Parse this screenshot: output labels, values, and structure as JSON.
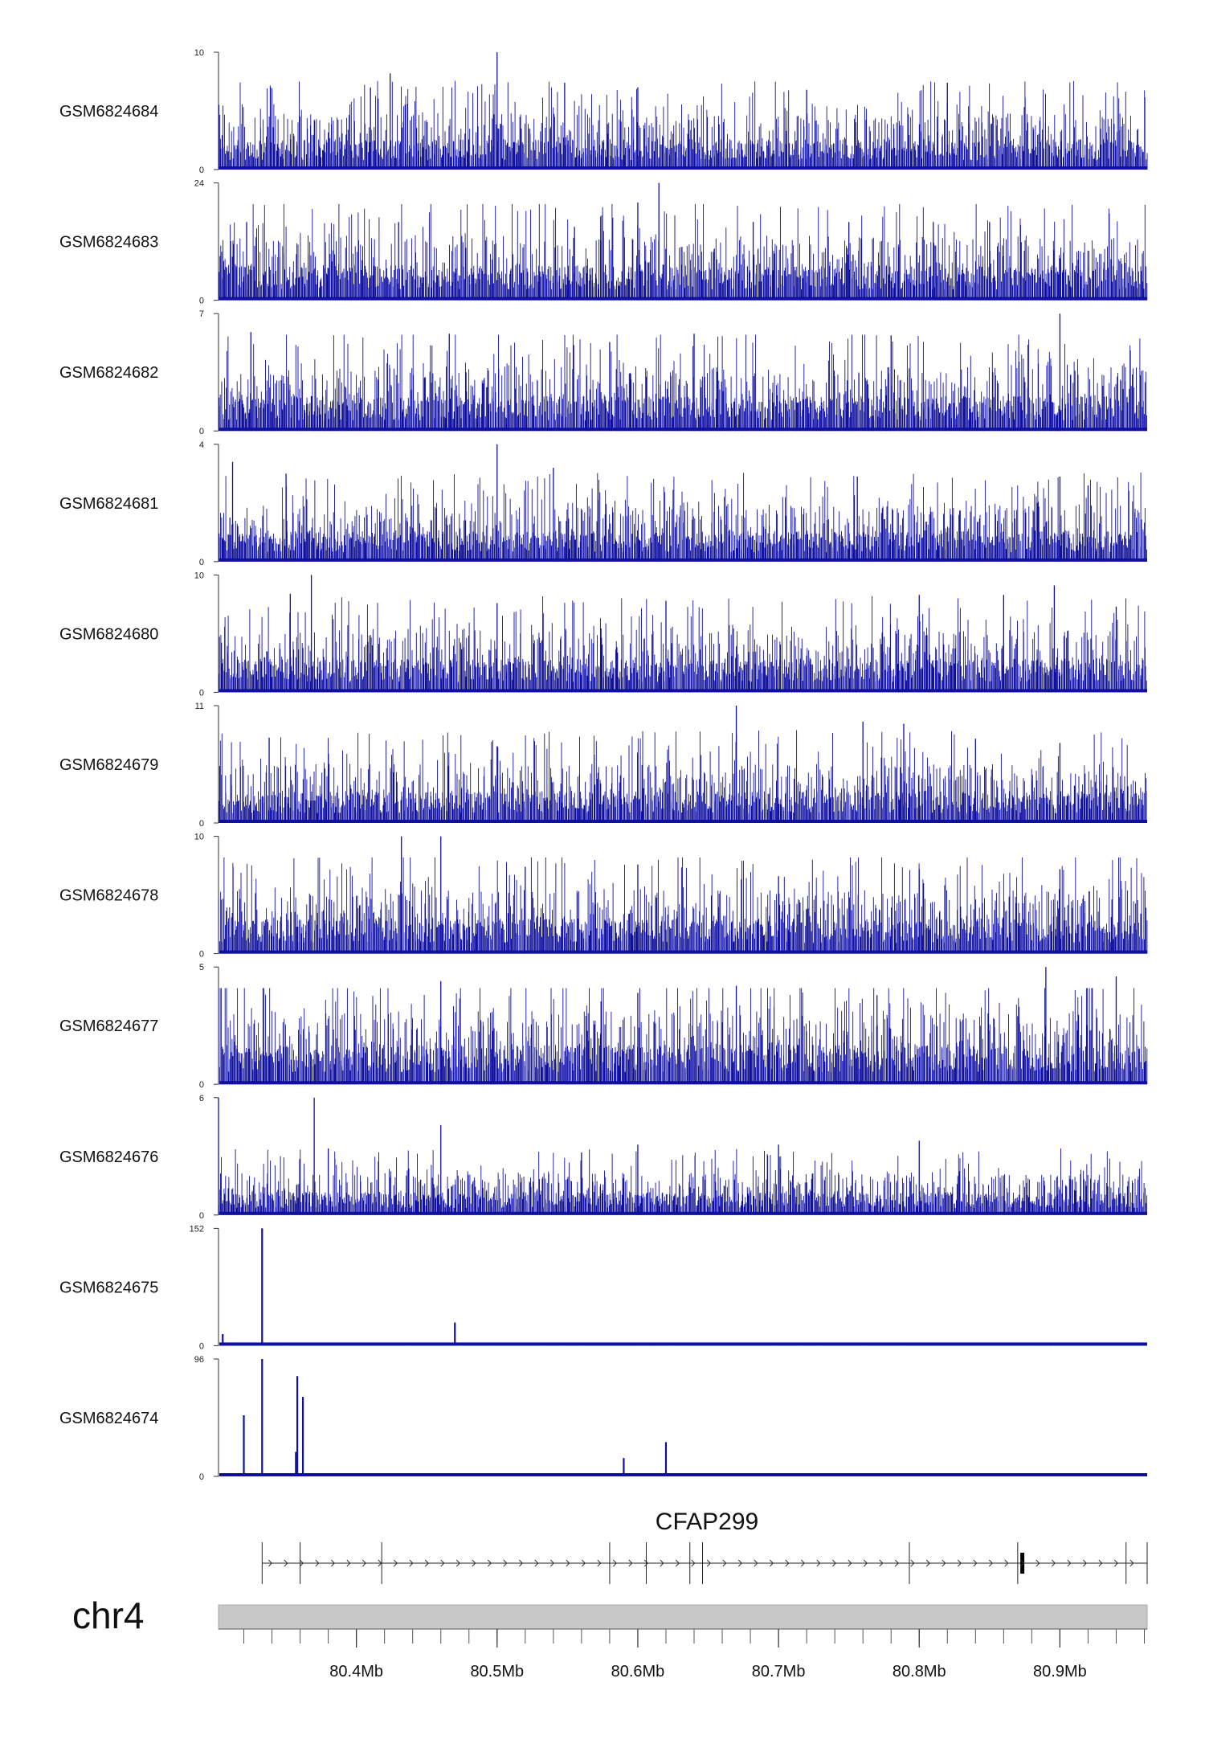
{
  "chart_data": {
    "type": "coverage-tracks",
    "chromosome": "chr4",
    "region_mb": [
      80.302,
      80.962
    ],
    "tracks": [
      {
        "sample": "GSM6824684",
        "ymin": "0",
        "ymax": "10",
        "max": 10,
        "baseline": 2.0,
        "spikes": [
          [
            80.339,
            7.0
          ],
          [
            80.41,
            7.0
          ],
          [
            80.424,
            8.2
          ],
          [
            80.5,
            10.0
          ],
          [
            80.548,
            7.4
          ],
          [
            80.6,
            7.0
          ],
          [
            80.72,
            6.8
          ],
          [
            80.82,
            7.4
          ]
        ]
      },
      {
        "sample": "GSM6824683",
        "ymin": "0",
        "ymax": "24",
        "max": 24,
        "baseline": 5.5,
        "spikes": [
          [
            80.322,
            16.0
          ],
          [
            80.43,
            16.0
          ],
          [
            80.555,
            15.0
          ],
          [
            80.6,
            20.0
          ],
          [
            80.615,
            24.0
          ],
          [
            80.682,
            16.0
          ],
          [
            80.75,
            16.0
          ],
          [
            80.81,
            16.0
          ],
          [
            80.85,
            16.0
          ]
        ]
      },
      {
        "sample": "GSM6824682",
        "ymin": "0",
        "ymax": "7",
        "max": 7,
        "baseline": 1.6,
        "spikes": [
          [
            80.325,
            5.9
          ],
          [
            80.466,
            5.8
          ],
          [
            80.58,
            5.3
          ],
          [
            80.64,
            5.8
          ],
          [
            80.78,
            5.7
          ],
          [
            80.9,
            7.0
          ],
          [
            80.95,
            4.8
          ]
        ]
      },
      {
        "sample": "GSM6824681",
        "ymin": "0",
        "ymax": "4",
        "max": 4,
        "baseline": 0.8,
        "spikes": [
          [
            80.312,
            3.4
          ],
          [
            80.35,
            3.0
          ],
          [
            80.5,
            4.0
          ],
          [
            80.54,
            3.2
          ],
          [
            80.756,
            2.9
          ],
          [
            80.9,
            2.9
          ],
          [
            80.92,
            2.6
          ]
        ]
      },
      {
        "sample": "GSM6824680",
        "ymin": "0",
        "ymax": "10",
        "max": 10,
        "baseline": 2.2,
        "spikes": [
          [
            80.368,
            10.0
          ],
          [
            80.353,
            8.4
          ],
          [
            80.5,
            7.6
          ],
          [
            80.62,
            7.8
          ],
          [
            80.8,
            8.3
          ],
          [
            80.86,
            8.3
          ],
          [
            80.896,
            9.1
          ],
          [
            80.94,
            7.3
          ]
        ]
      },
      {
        "sample": "GSM6824679",
        "ymin": "0",
        "ymax": "11",
        "max": 11,
        "baseline": 2.3,
        "spikes": [
          [
            80.338,
            8.0
          ],
          [
            80.5,
            7.2
          ],
          [
            80.67,
            11.0
          ],
          [
            80.76,
            9.5
          ],
          [
            80.789,
            9.3
          ],
          [
            80.84,
            7.9
          ],
          [
            80.9,
            7.5
          ]
        ]
      },
      {
        "sample": "GSM6824678",
        "ymin": "0",
        "ymax": "10",
        "max": 10,
        "baseline": 2.3,
        "spikes": [
          [
            80.432,
            10.0
          ],
          [
            80.46,
            10.0
          ],
          [
            80.52,
            7.4
          ],
          [
            80.6,
            7.6
          ],
          [
            80.7,
            6.6
          ],
          [
            80.8,
            7.2
          ],
          [
            80.9,
            7.2
          ]
        ]
      },
      {
        "sample": "GSM6824677",
        "ymin": "0",
        "ymax": "5",
        "max": 5,
        "baseline": 1.3,
        "spikes": [
          [
            80.46,
            4.4
          ],
          [
            80.6,
            3.9
          ],
          [
            80.67,
            4.2
          ],
          [
            80.77,
            3.8
          ],
          [
            80.89,
            5.0
          ],
          [
            80.94,
            4.6
          ]
        ]
      },
      {
        "sample": "GSM6824676",
        "ymin": "0",
        "ymax": "6",
        "max": 6,
        "baseline": 0.9,
        "spikes": [
          [
            80.302,
            6.0
          ],
          [
            80.37,
            6.0
          ],
          [
            80.38,
            3.4
          ],
          [
            80.46,
            4.6
          ],
          [
            80.56,
            3.2
          ],
          [
            80.6,
            3.6
          ],
          [
            80.7,
            3.6
          ],
          [
            80.8,
            3.8
          ]
        ]
      },
      {
        "sample": "GSM6824675",
        "ymin": "0",
        "ymax": "152",
        "max": 152,
        "baseline": 1.0,
        "spikes": [
          [
            80.333,
            152.0
          ],
          [
            80.305,
            15.0
          ],
          [
            80.47,
            30.0
          ]
        ]
      },
      {
        "sample": "GSM6824674",
        "ymin": "0",
        "ymax": "96",
        "max": 96,
        "baseline": 1.0,
        "spikes": [
          [
            80.32,
            50.0
          ],
          [
            80.333,
            96.0
          ],
          [
            80.358,
            82.0
          ],
          [
            80.362,
            65.0
          ],
          [
            80.357,
            20.0
          ],
          [
            80.59,
            15.0
          ],
          [
            80.62,
            28.0
          ]
        ]
      }
    ],
    "gene": {
      "name": "CFAP299",
      "start_mb": 80.333,
      "end_mb": 80.962,
      "strand": "+",
      "exons_mb": [
        80.333,
        80.36,
        80.418,
        80.58,
        80.606,
        80.637,
        80.646,
        80.793,
        80.87,
        80.947,
        80.962
      ],
      "highlight_exon_mb": 80.873
    },
    "x_axis": {
      "ticks_mb": [
        80.4,
        80.5,
        80.6,
        80.7,
        80.8,
        80.9
      ],
      "tick_labels": [
        "80.4Mb",
        "80.5Mb",
        "80.6Mb",
        "80.7Mb",
        "80.8Mb",
        "80.9Mb"
      ],
      "minor_step_mb": 0.02
    }
  },
  "colors": {
    "signal": "#1010a0",
    "ideogram": "#c8c8c8",
    "axis": "#333333"
  }
}
